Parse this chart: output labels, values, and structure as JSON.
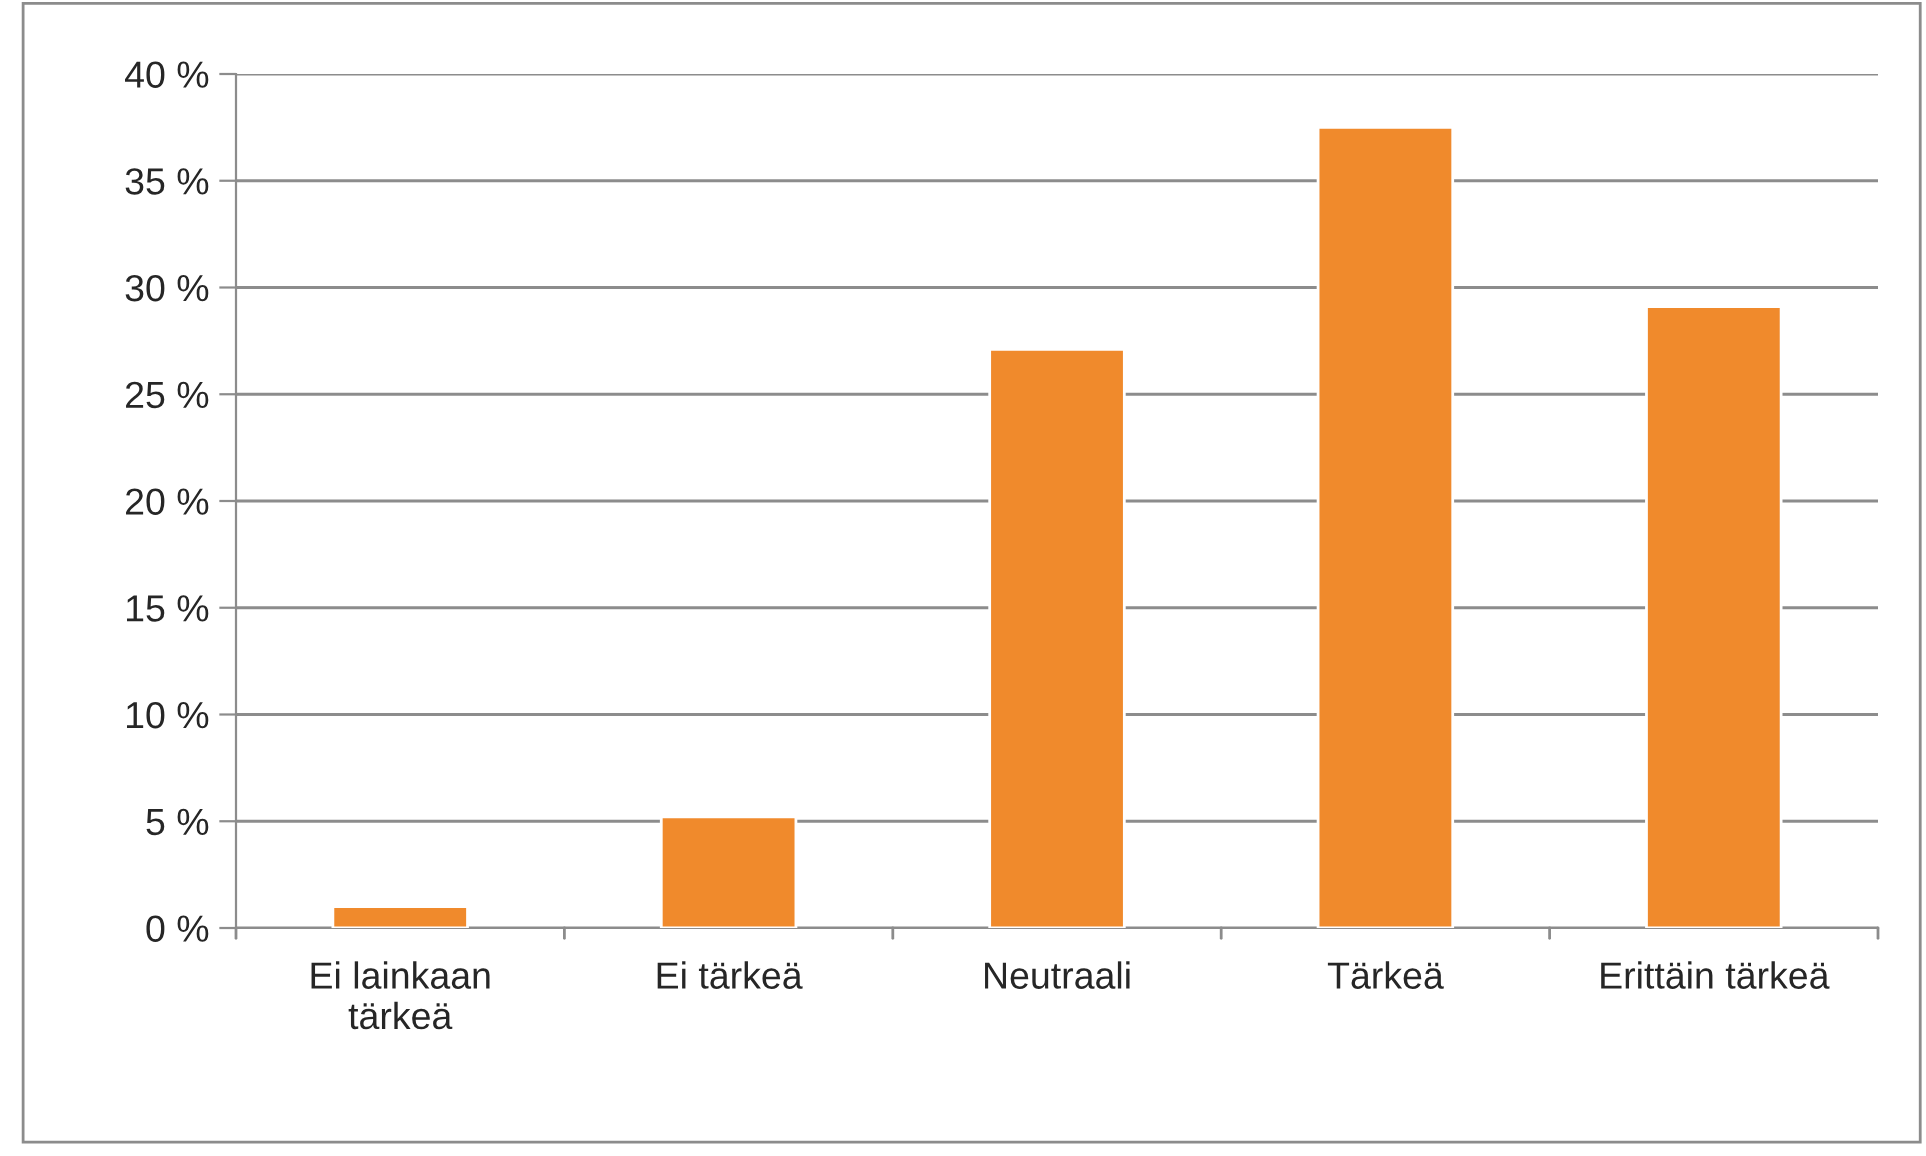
{
  "chart_data": {
    "type": "bar",
    "categories": [
      "Ei lainkaan tärkeä",
      "Ei tärkeä",
      "Neutraali",
      "Tärkeä",
      "Erittäin tärkeä"
    ],
    "values": [
      1.0,
      5.2,
      27.1,
      37.5,
      29.1
    ],
    "color": "#f08a2c",
    "ylim": [
      0,
      40
    ],
    "yticks": [
      {
        "value": 0,
        "label": "0 %"
      },
      {
        "value": 5,
        "label": "5 %"
      },
      {
        "value": 10,
        "label": "10 %"
      },
      {
        "value": 15,
        "label": "15 %"
      },
      {
        "value": 20,
        "label": "20 %"
      },
      {
        "value": 25,
        "label": "25 %"
      },
      {
        "value": 30,
        "label": "30 %"
      },
      {
        "value": 35,
        "label": "35 %"
      },
      {
        "value": 40,
        "label": "40 %"
      }
    ],
    "grid": "y",
    "legend": false
  }
}
